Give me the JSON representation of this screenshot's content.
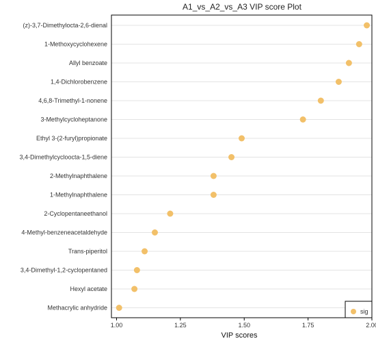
{
  "chart_data": {
    "type": "scatter",
    "title": "A1_vs_A2_vs_A3 VIP score Plot",
    "xlabel": "VIP scores",
    "ylabel": "",
    "xlim": [
      0.98,
      2.0
    ],
    "x_ticks": [
      "1.00",
      "1.25",
      "1.50",
      "1.75",
      "2.00"
    ],
    "grid": "horizontal",
    "legend_position": "bottom-right",
    "categories": [
      "(z)-3,7-Dimethylocta-2,6-dienal",
      "1-Methoxycyclohexene",
      "Allyl benzoate",
      "1,4-Dichlorobenzene",
      "4,6,8-Trimethyl-1-nonene",
      "3-Methylcycloheptanone",
      "Ethyl 3-(2-furyl)propionate",
      "3,4-Dimethylcycloocta-1,5-diene",
      "2-Methylnaphthalene",
      "1-Methylnaphthalene",
      "2-Cyclopentaneethanol",
      "4-Methyl-benzeneacetaldehyde",
      "Trans-piperitol",
      "3,4-Dimethyl-1,2-cyclopentaned",
      "Hexyl acetate",
      "Methacrylic anhydride"
    ],
    "values": [
      1.98,
      1.95,
      1.91,
      1.87,
      1.8,
      1.73,
      1.49,
      1.45,
      1.38,
      1.38,
      1.21,
      1.15,
      1.11,
      1.08,
      1.07,
      1.01
    ],
    "series": [
      {
        "name": "sig",
        "color": "#f2c069"
      }
    ]
  }
}
